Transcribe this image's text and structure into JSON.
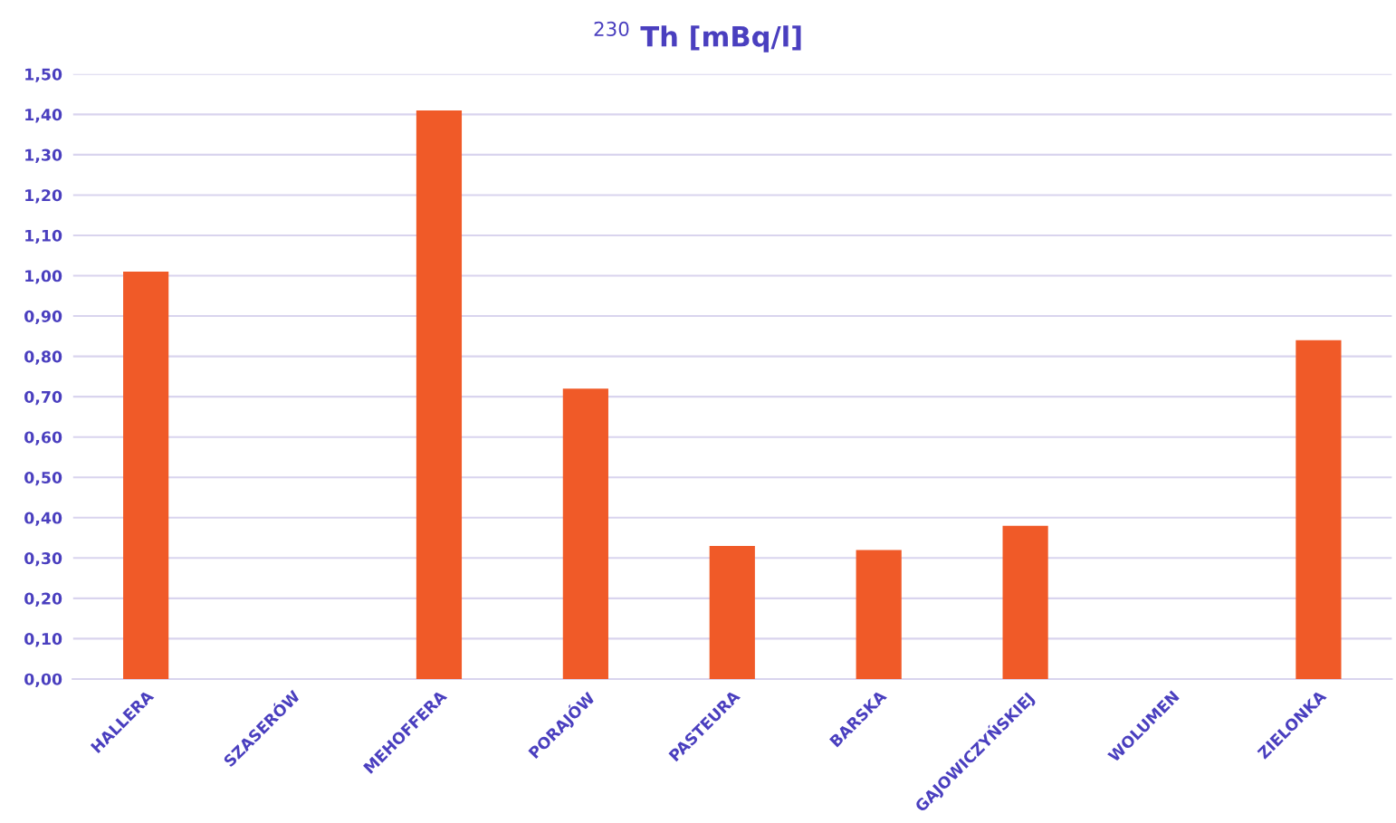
{
  "chart_data": {
    "type": "bar",
    "title": "$^{230}$ Th [mBq/l]",
    "categories": [
      "HALLERA",
      "SZASERÓW",
      "MEHOFFERA",
      "PORAJÓW",
      "PASTEURA",
      "BARSKA",
      "GAJOWICZYŃSKIEJ",
      "WOLUMEN",
      "ZIELONKA"
    ],
    "values": [
      1.01,
      null,
      1.41,
      0.72,
      0.33,
      0.32,
      0.38,
      null,
      0.84
    ],
    "color": "#f05a28",
    "ylim": [
      0,
      1.5
    ],
    "yticks": [
      {
        "value": 0,
        "label": "0,00"
      },
      {
        "value": 0.1,
        "label": "0,10"
      },
      {
        "value": 0.2,
        "label": "0,20"
      },
      {
        "value": 0.3,
        "label": "0,30"
      },
      {
        "value": 0.4,
        "label": "0,40"
      },
      {
        "value": 0.5,
        "label": "0,50"
      },
      {
        "value": 0.6,
        "label": "0,60"
      },
      {
        "value": 0.7,
        "label": "0,70"
      },
      {
        "value": 0.8,
        "label": "0,80"
      },
      {
        "value": 0.9,
        "label": "0,90"
      },
      {
        "value": 1.0,
        "label": "1,00"
      },
      {
        "value": 1.1,
        "label": "1,10"
      },
      {
        "value": 1.2,
        "label": "1,20"
      },
      {
        "value": 1.3,
        "label": "1,30"
      },
      {
        "value": 1.4,
        "label": "1,40"
      },
      {
        "value": 1.5,
        "label": "1,50"
      }
    ],
    "grid": "y"
  }
}
